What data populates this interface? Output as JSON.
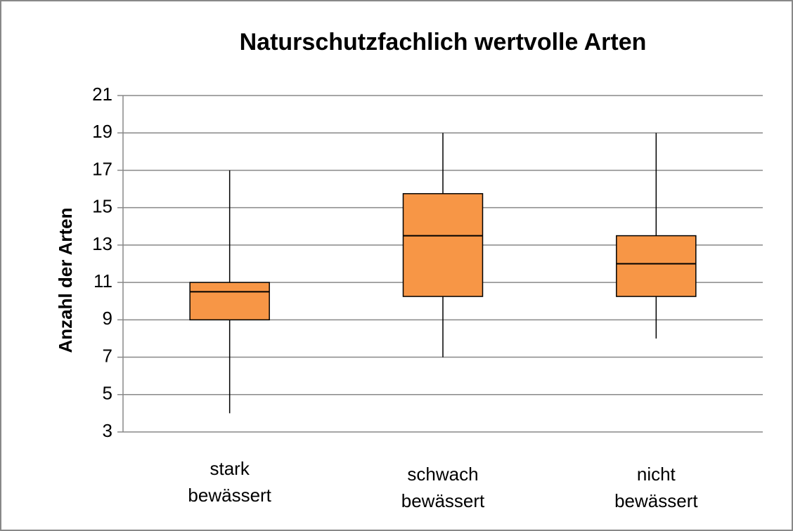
{
  "chart_data": {
    "type": "box",
    "title": "Naturschutzfachlich wertvolle Arten",
    "y_label": "Anzahl der Arten",
    "categories": [
      "stark bewässert",
      "schwach bewässert",
      "nicht bewässert"
    ],
    "boxes": [
      {
        "min": 4,
        "q1": 9,
        "median": 10.5,
        "q3": 11,
        "max": 17
      },
      {
        "min": 7,
        "q1": 10.25,
        "median": 13.5,
        "q3": 15.75,
        "max": 19
      },
      {
        "min": 8,
        "q1": 10.25,
        "median": 12,
        "q3": 13.5,
        "max": 19
      }
    ],
    "color": "#f79646",
    "ylim": [
      3,
      21
    ],
    "yticks": [
      3,
      5,
      7,
      9,
      11,
      13,
      15,
      17,
      19,
      21
    ],
    "grid": true
  }
}
